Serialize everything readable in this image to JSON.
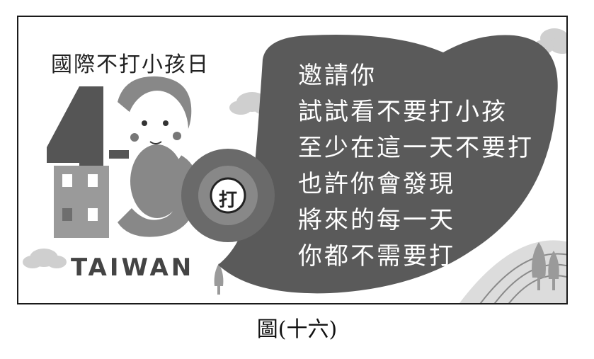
{
  "campaign_title": "國際不打小孩日",
  "logo": {
    "number": "430",
    "badge_text": "打",
    "country": "TAIWAN"
  },
  "bubble_lines": [
    "邀請你",
    "試試看不要打小孩",
    "至少在這一天不要打",
    "也許你會發現",
    "將來的每一天",
    "你都不需要打"
  ],
  "caption": "圖(十六)",
  "colors": {
    "bubble": "#5a5a5a",
    "logo_dark": "#555555",
    "logo_mid": "#888888",
    "cloud": "#cfcfcf",
    "frame": "#1a1a1a"
  }
}
